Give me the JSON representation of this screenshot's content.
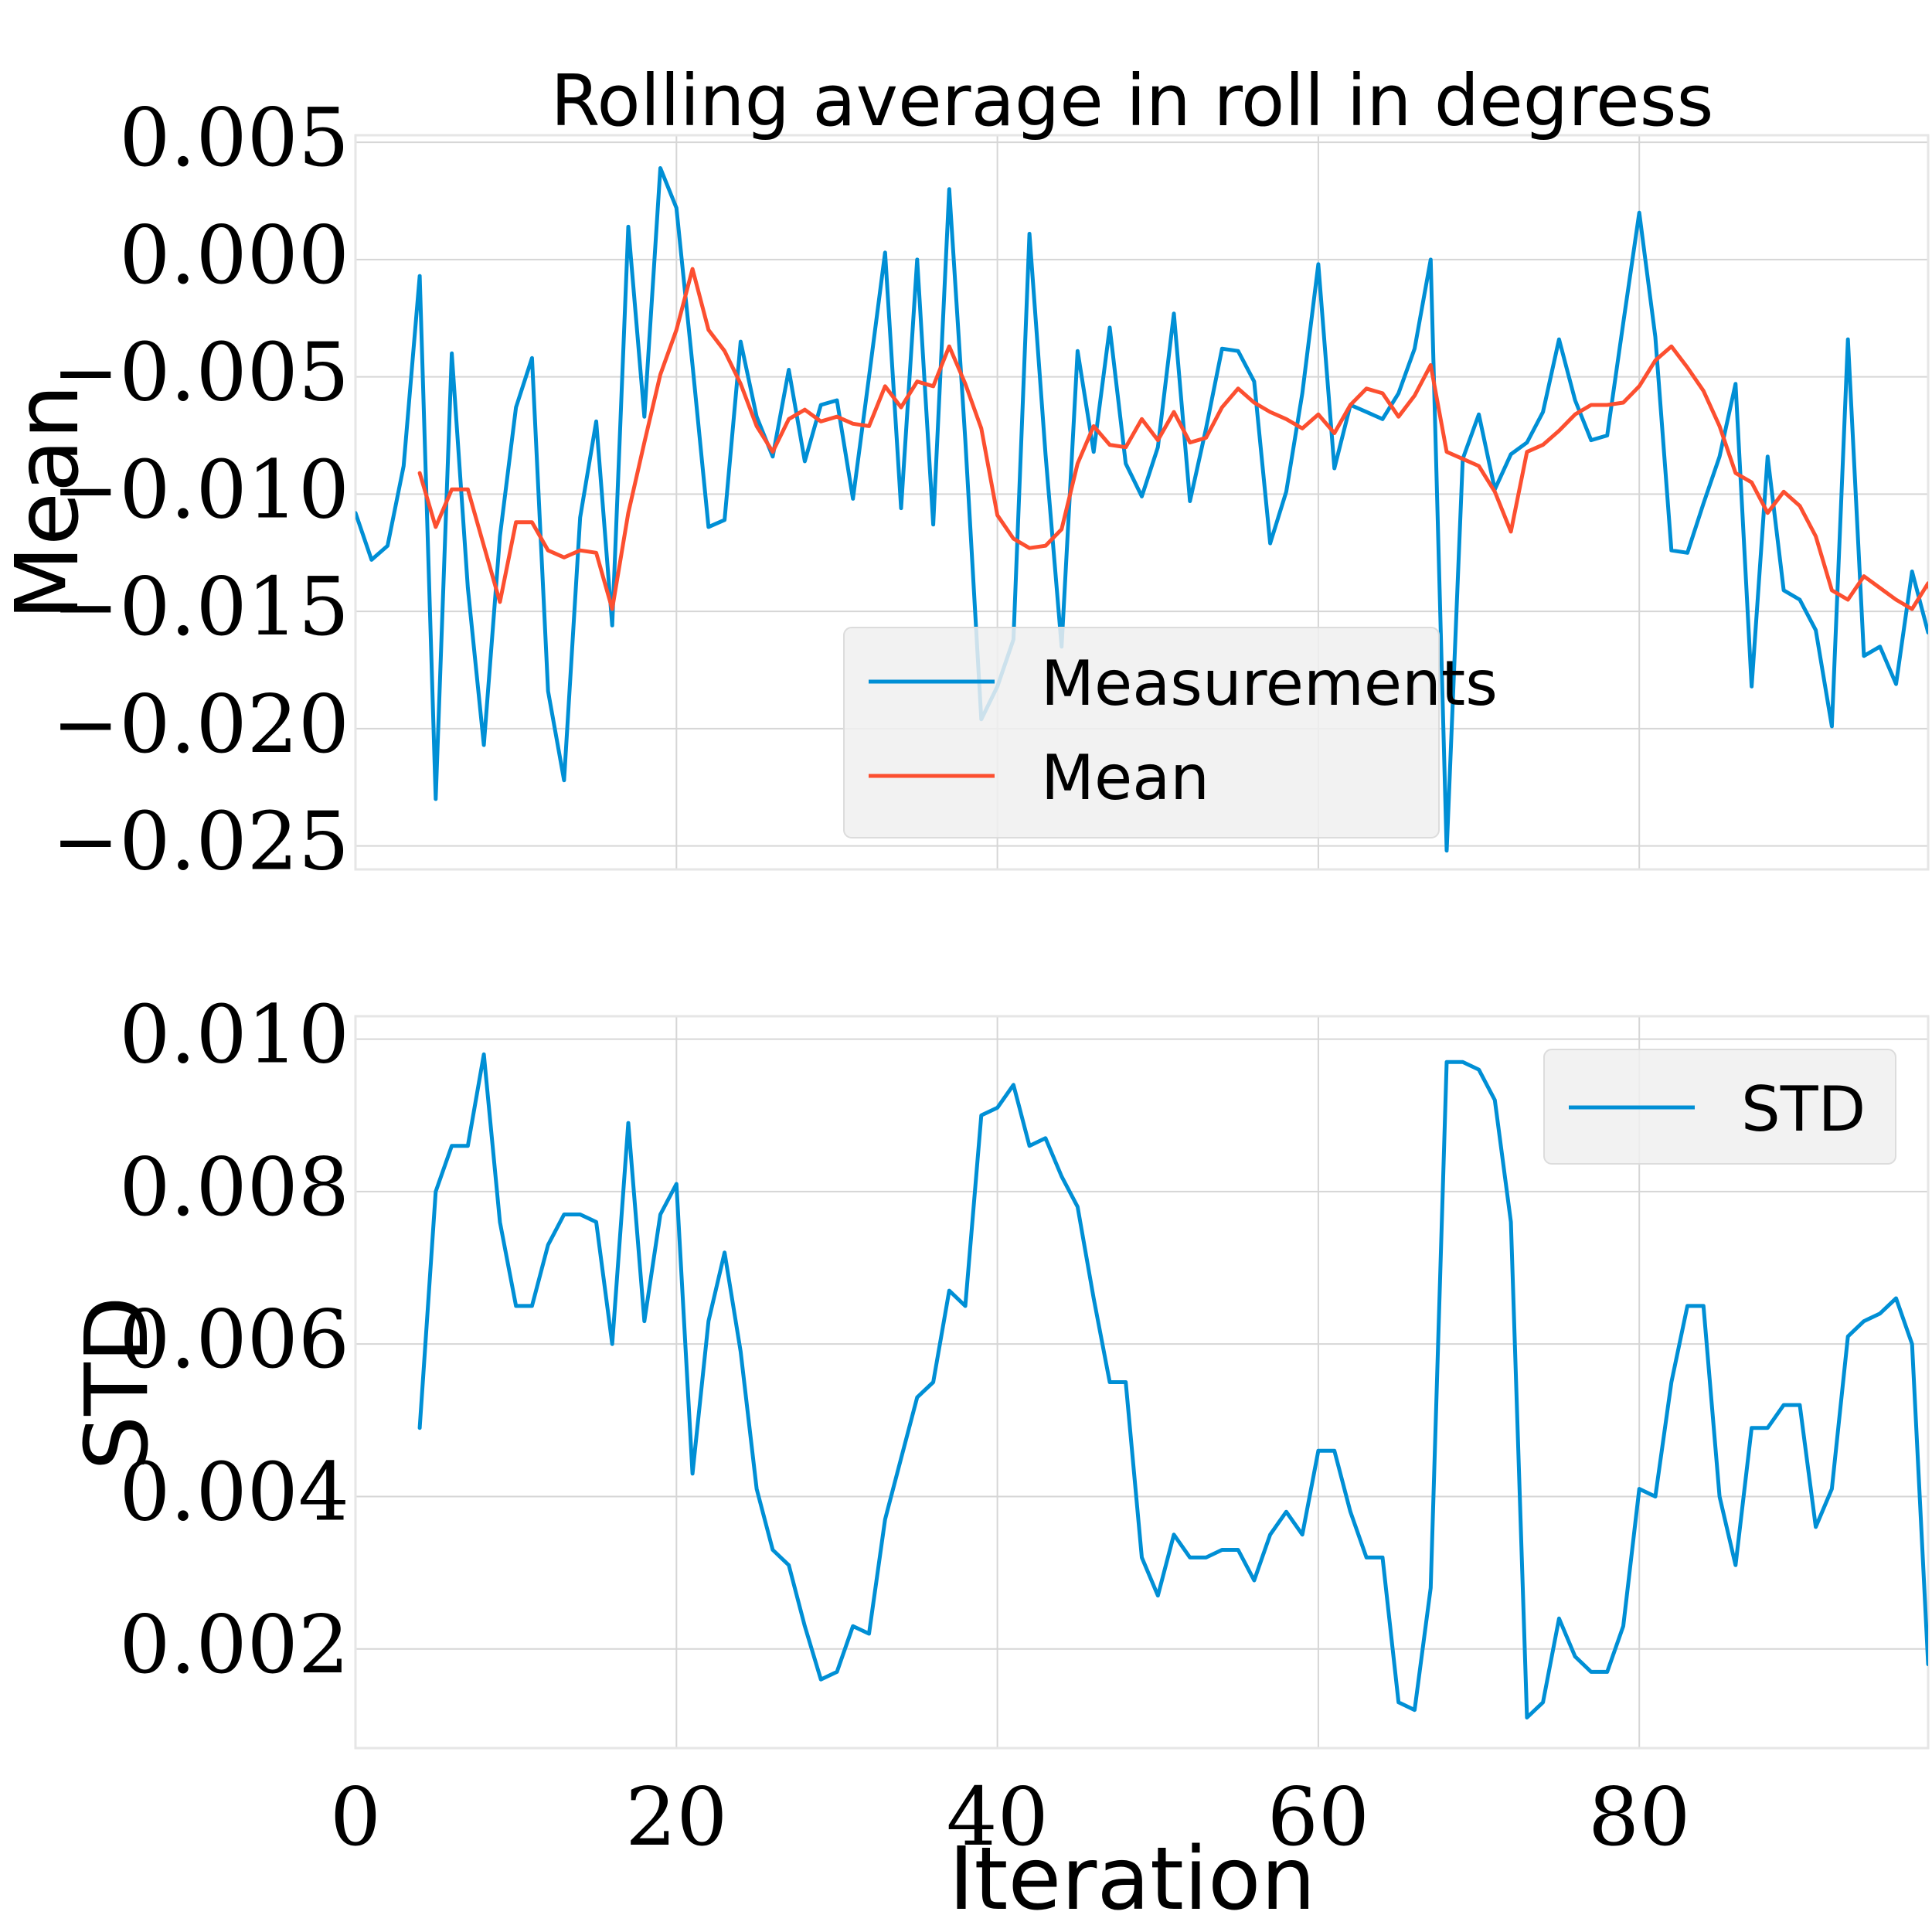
{
  "colors": {
    "measurements": "#008fd5",
    "mean": "#fc4f30",
    "std": "#008fd5"
  },
  "chart_data": [
    {
      "type": "line",
      "title": "Rolling average in roll in degress",
      "xlabel": "",
      "ylabel": "Mean",
      "xlim": [
        0,
        98
      ],
      "ylim": [
        -0.026,
        0.0053
      ],
      "xticks": [
        0,
        20,
        40,
        60,
        80
      ],
      "yticks": [
        0.005,
        0.0,
        -0.005,
        -0.01,
        -0.015,
        -0.02,
        -0.025
      ],
      "ytick_labels": [
        "0.005",
        "0.000",
        "−0.005",
        "−0.010",
        "−0.015",
        "−0.020",
        "−0.025"
      ],
      "show_xtick_labels": false,
      "grid": true,
      "legend_position": "lower-center",
      "series": [
        {
          "name": "Measurements",
          "x_start": 0,
          "values": [
            -0.0108,
            -0.0128,
            -0.0122,
            -0.0088,
            -0.0007,
            -0.023,
            -0.004,
            -0.014,
            -0.0207,
            -0.0118,
            -0.0063,
            -0.0042,
            -0.0184,
            -0.0222,
            -0.011,
            -0.0069,
            -0.0156,
            0.0014,
            -0.0067,
            0.0039,
            0.0022,
            -0.0045,
            -0.0114,
            -0.0111,
            -0.0035,
            -0.0067,
            -0.0084,
            -0.0047,
            -0.0086,
            -0.0062,
            -0.006,
            -0.0102,
            -0.005,
            0.0003,
            -0.0106,
            0.0,
            -0.0113,
            0.003,
            -0.0077,
            -0.0196,
            -0.0182,
            -0.0162,
            0.0011,
            -0.0083,
            -0.0165,
            -0.0039,
            -0.0082,
            -0.0029,
            -0.0087,
            -0.0101,
            -0.008,
            -0.0023,
            -0.0103,
            -0.0072,
            -0.0038,
            -0.0039,
            -0.0052,
            -0.0121,
            -0.0099,
            -0.0057,
            -0.0002,
            -0.0089,
            -0.0062,
            -0.0065,
            -0.0068,
            -0.0057,
            -0.0038,
            0.0,
            -0.0252,
            -0.0085,
            -0.0066,
            -0.0098,
            -0.0083,
            -0.0078,
            -0.0065,
            -0.0034,
            -0.006,
            -0.0077,
            -0.0075,
            -0.0027,
            0.002,
            -0.0033,
            -0.0124,
            -0.0125,
            -0.0104,
            -0.0084,
            -0.0053,
            -0.0182,
            -0.0084,
            -0.0141,
            -0.0145,
            -0.0158,
            -0.0199,
            -0.0034,
            -0.0169,
            -0.0165,
            -0.0181,
            -0.0133,
            -0.0159
          ]
        },
        {
          "name": "Mean",
          "x_start": 4,
          "values": [
            -0.0091,
            -0.0114,
            -0.0098,
            -0.0098,
            -0.0122,
            -0.0146,
            -0.0112,
            -0.0112,
            -0.0124,
            -0.0127,
            -0.0124,
            -0.0125,
            -0.0149,
            -0.0108,
            -0.0078,
            -0.0049,
            -0.003,
            -0.0004,
            -0.003,
            -0.0039,
            -0.0053,
            -0.0071,
            -0.0082,
            -0.0068,
            -0.0064,
            -0.0069,
            -0.0067,
            -0.007,
            -0.0071,
            -0.0054,
            -0.0063,
            -0.0052,
            -0.0054,
            -0.0037,
            -0.0053,
            -0.0072,
            -0.0109,
            -0.0119,
            -0.0123,
            -0.0122,
            -0.0115,
            -0.0087,
            -0.0071,
            -0.0079,
            -0.008,
            -0.0068,
            -0.0077,
            -0.0065,
            -0.0078,
            -0.0076,
            -0.0063,
            -0.0055,
            -0.0061,
            -0.0065,
            -0.0068,
            -0.0072,
            -0.0066,
            -0.0074,
            -0.0062,
            -0.0055,
            -0.0057,
            -0.0067,
            -0.0058,
            -0.0045,
            -0.0082,
            -0.0085,
            -0.0088,
            -0.0099,
            -0.0116,
            -0.0082,
            -0.0079,
            -0.0073,
            -0.0066,
            -0.0062,
            -0.0062,
            -0.0061,
            -0.0054,
            -0.0043,
            -0.0037,
            -0.0046,
            -0.0056,
            -0.0071,
            -0.0091,
            -0.0095,
            -0.0108,
            -0.0099,
            -0.0105,
            -0.0118,
            -0.0141,
            -0.0145,
            -0.0135,
            -0.014,
            -0.0145,
            -0.0149,
            -0.0138,
            -0.0161
          ]
        }
      ]
    },
    {
      "type": "line",
      "title": "",
      "xlabel": "Iteration",
      "ylabel": "STD",
      "xlim": [
        0,
        98
      ],
      "ylim": [
        0.0007,
        0.0103
      ],
      "xticks": [
        0,
        20,
        40,
        60,
        80
      ],
      "xtick_labels": [
        "0",
        "20",
        "40",
        "60",
        "80"
      ],
      "yticks": [
        0.01,
        0.008,
        0.006,
        0.004,
        0.002
      ],
      "ytick_labels": [
        "0.010",
        "0.008",
        "0.006",
        "0.004",
        "0.002"
      ],
      "grid": true,
      "legend_position": "upper-right",
      "series": [
        {
          "name": "STD",
          "x_start": 4,
          "values": [
            0.0049,
            0.008,
            0.0086,
            0.0086,
            0.0098,
            0.0076,
            0.0065,
            0.0065,
            0.0073,
            0.0077,
            0.0077,
            0.0076,
            0.006,
            0.0089,
            0.0063,
            0.0077,
            0.0081,
            0.0043,
            0.0063,
            0.0072,
            0.0059,
            0.0041,
            0.0033,
            0.0031,
            0.0023,
            0.0016,
            0.0017,
            0.0023,
            0.0022,
            0.0037,
            0.0045,
            0.0053,
            0.0055,
            0.0067,
            0.0065,
            0.009,
            0.0091,
            0.0094,
            0.0086,
            0.0087,
            0.0082,
            0.0078,
            0.0066,
            0.0055,
            0.0055,
            0.0032,
            0.0027,
            0.0035,
            0.0032,
            0.0032,
            0.0033,
            0.0033,
            0.0029,
            0.0035,
            0.0038,
            0.0035,
            0.0046,
            0.0046,
            0.0038,
            0.0032,
            0.0032,
            0.0013,
            0.0012,
            0.0028,
            0.0097,
            0.0097,
            0.0096,
            0.0092,
            0.0076,
            0.0011,
            0.0013,
            0.0024,
            0.0019,
            0.0017,
            0.0017,
            0.0023,
            0.0041,
            0.004,
            0.0055,
            0.0065,
            0.0065,
            0.004,
            0.0031,
            0.0049,
            0.0049,
            0.0052,
            0.0052,
            0.0036,
            0.0041,
            0.0061,
            0.0063,
            0.0064,
            0.0066,
            0.006,
            0.0018
          ]
        }
      ]
    }
  ]
}
